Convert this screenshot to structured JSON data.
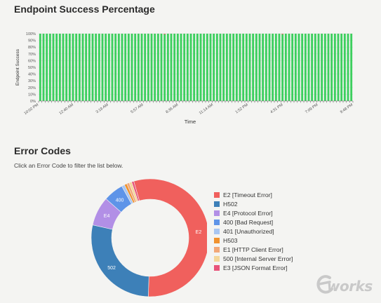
{
  "success_section": {
    "title": "Endpoint Success Percentage"
  },
  "chart_data": [
    {
      "type": "bar",
      "title": "Endpoint Success Percentage",
      "xlabel": "Time",
      "ylabel": "Endpoint Success",
      "ylim": [
        0,
        100
      ],
      "y_ticks": [
        "0%",
        "10%",
        "20%",
        "30%",
        "40%",
        "50%",
        "60%",
        "70%",
        "80%",
        "90%",
        "100%"
      ],
      "x_ticks": [
        "10:02 PM",
        "12:40 AM",
        "3:19 AM",
        "5:57 AM",
        "8:36 AM",
        "11:14 AM",
        "1:52 PM",
        "4:31 PM",
        "7:09 PM",
        "9:48 PM"
      ],
      "bar_count": 96,
      "values": [
        100,
        100,
        100,
        100,
        100,
        100,
        100,
        100,
        100,
        100,
        100,
        100,
        100,
        100,
        100,
        100,
        100,
        100,
        100,
        100,
        100,
        100,
        100,
        100,
        100,
        100,
        100,
        100,
        100,
        100,
        100,
        100,
        100,
        100,
        100,
        100,
        100,
        100,
        100,
        100,
        100,
        100,
        100,
        100,
        100,
        100,
        100,
        100,
        100,
        100,
        100,
        100,
        100,
        100,
        100,
        100,
        100,
        100,
        100,
        100,
        100,
        100,
        100,
        100,
        100,
        100,
        100,
        100,
        100,
        100,
        100,
        100,
        100,
        100,
        100,
        100,
        100,
        100,
        100,
        100,
        100,
        100,
        100,
        100,
        100,
        100,
        100,
        100,
        100,
        100,
        100,
        100,
        100,
        100,
        100,
        100
      ],
      "bar_color": "#3ccf5e",
      "error_tip_color": "#ef6a6a",
      "grid": true
    },
    {
      "type": "pie",
      "title": "Error Codes",
      "donut": true,
      "slices": [
        {
          "code": "E2",
          "label": "E2 [Timeout Error]",
          "value": 55,
          "color": "#f0605d",
          "shown": "E2"
        },
        {
          "code": "H502",
          "label": "H502",
          "value": 28,
          "color": "#3d80b8",
          "shown": "502"
        },
        {
          "code": "E4",
          "label": "E4 [Protocol Error]",
          "value": 8,
          "color": "#b28fe6",
          "shown": "E4"
        },
        {
          "code": "400",
          "label": "400 [Bad Request]",
          "value": 5.5,
          "color": "#5e94e8",
          "shown": "400"
        },
        {
          "code": "401",
          "label": "401 [Unauthorized]",
          "value": 0.8,
          "color": "#a8c6f2",
          "shown": ""
        },
        {
          "code": "H503",
          "label": "H503",
          "value": 0.7,
          "color": "#f0922e",
          "shown": ""
        },
        {
          "code": "E1",
          "label": "E1 [HTTP Client Error]",
          "value": 0.7,
          "color": "#f2a877",
          "shown": ""
        },
        {
          "code": "500",
          "label": "500 [Internal Server Error]",
          "value": 0.7,
          "color": "#f4d79a",
          "shown": ""
        },
        {
          "code": "E3",
          "label": "E3 [JSON Format Error]",
          "value": 0.6,
          "color": "#e8547a",
          "shown": ""
        }
      ]
    }
  ],
  "errors_section": {
    "title": "Error Codes",
    "subtitle": "Click an Error Code to filter the list below."
  },
  "watermark": {
    "text": "works",
    "logo_letter": "e",
    "color": "#c9c9c9"
  }
}
